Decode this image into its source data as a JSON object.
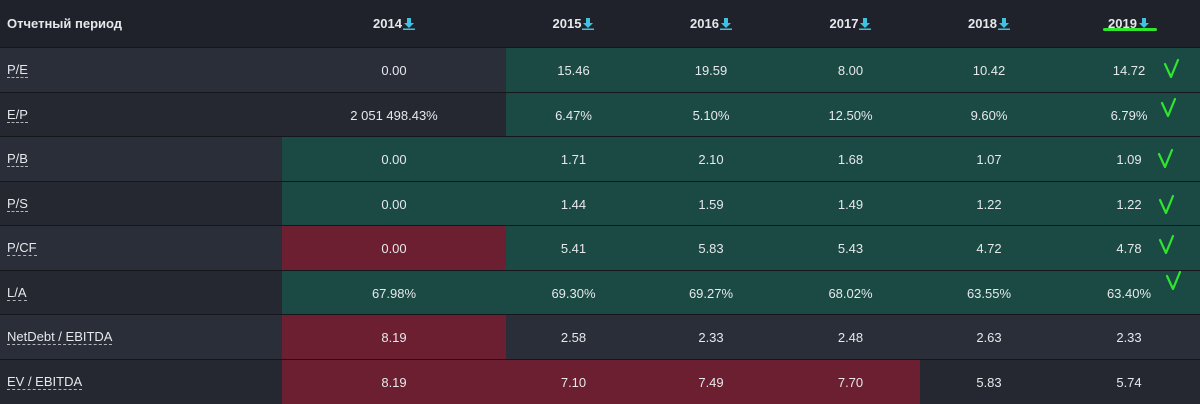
{
  "header": {
    "label": "Отчетный период",
    "years": [
      "2014",
      "2015",
      "2016",
      "2017",
      "2018",
      "2019"
    ]
  },
  "rows": [
    {
      "label": "P/E",
      "values": [
        "0.00",
        "15.46",
        "19.59",
        "8.00",
        "10.42",
        "14.72"
      ],
      "colors": [
        "",
        "green",
        "green",
        "green",
        "green",
        "green"
      ],
      "checked": true
    },
    {
      "label": "E/P",
      "values": [
        "2 051 498.43%",
        "6.47%",
        "5.10%",
        "12.50%",
        "9.60%",
        "6.79%"
      ],
      "colors": [
        "",
        "green",
        "green",
        "green",
        "green",
        "green"
      ],
      "checked": true
    },
    {
      "label": "P/B",
      "values": [
        "0.00",
        "1.71",
        "2.10",
        "1.68",
        "1.07",
        "1.09"
      ],
      "colors": [
        "green",
        "green",
        "green",
        "green",
        "green",
        "green"
      ],
      "checked": true
    },
    {
      "label": "P/S",
      "values": [
        "0.00",
        "1.44",
        "1.59",
        "1.49",
        "1.22",
        "1.22"
      ],
      "colors": [
        "green",
        "green",
        "green",
        "green",
        "green",
        "green"
      ],
      "checked": true
    },
    {
      "label": "P/CF",
      "values": [
        "0.00",
        "5.41",
        "5.83",
        "5.43",
        "4.72",
        "4.78"
      ],
      "colors": [
        "red",
        "green",
        "green",
        "green",
        "green",
        "green"
      ],
      "checked": true
    },
    {
      "label": "L/A",
      "values": [
        "67.98%",
        "69.30%",
        "69.27%",
        "68.02%",
        "63.55%",
        "63.40%"
      ],
      "colors": [
        "green",
        "green",
        "green",
        "green",
        "green",
        "green"
      ],
      "checked": true
    },
    {
      "label": "NetDebt / EBITDA",
      "values": [
        "8.19",
        "2.58",
        "2.33",
        "2.48",
        "2.63",
        "2.33"
      ],
      "colors": [
        "red",
        "",
        "",
        "",
        "",
        ""
      ],
      "checked": false
    },
    {
      "label": "EV / EBITDA",
      "values": [
        "8.19",
        "7.10",
        "7.49",
        "7.70",
        "5.83",
        "5.74"
      ],
      "colors": [
        "red",
        "red",
        "red",
        "red",
        "",
        ""
      ],
      "checked": false
    }
  ],
  "colors": {
    "green": "#1b4a44",
    "red": "#6b1f30",
    "accent": "#3fc1e0",
    "check": "#2ee62e"
  },
  "icons": {
    "download": "download-icon",
    "check": "check-mark-icon"
  }
}
